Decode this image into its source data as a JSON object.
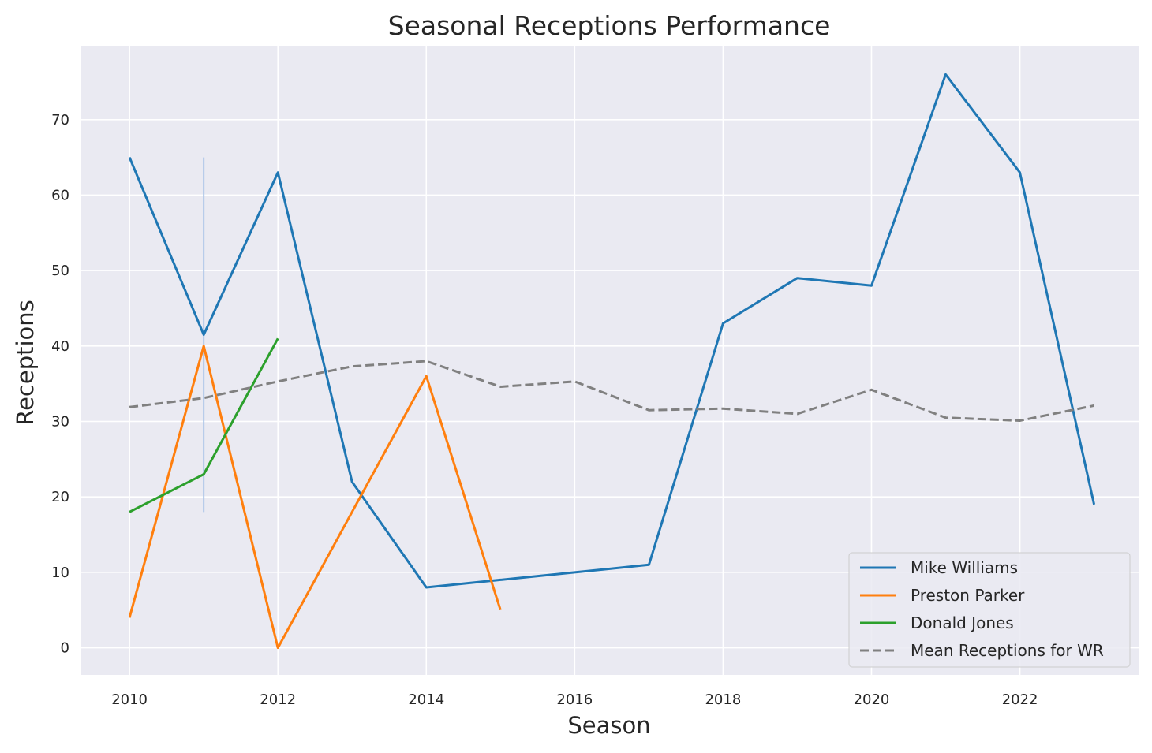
{
  "chart_data": {
    "type": "line",
    "title": "Seasonal Receptions Performance",
    "xlabel": "Season",
    "ylabel": "Receptions",
    "xlim": [
      2009.35,
      2023.6
    ],
    "ylim": [
      -3.6,
      79.8
    ],
    "xticks": [
      2010,
      2012,
      2014,
      2016,
      2018,
      2020,
      2022
    ],
    "yticks": [
      0,
      10,
      20,
      30,
      40,
      50,
      60,
      70
    ],
    "grid": true,
    "legend_position": "lower-right",
    "background": "#eaeaf2",
    "series": [
      {
        "name": "Mike Williams",
        "color": "#1f77b4",
        "dashed": false,
        "x": [
          2010,
          2011,
          2012,
          2013,
          2014,
          2015,
          2016,
          2017,
          2018,
          2019,
          2020,
          2021,
          2022,
          2023
        ],
        "y": [
          65,
          41.5,
          63,
          22,
          8,
          9,
          10,
          11,
          43,
          49,
          48,
          76,
          63,
          19
        ]
      },
      {
        "name": "Preston Parker",
        "color": "#ff7f0e",
        "dashed": false,
        "x": [
          2010,
          2011,
          2012,
          2013,
          2014,
          2015
        ],
        "y": [
          4,
          40,
          0,
          18,
          36,
          5
        ]
      },
      {
        "name": "Donald Jones",
        "color": "#2ca02c",
        "dashed": false,
        "x": [
          2010,
          2011,
          2012
        ],
        "y": [
          18,
          23,
          41
        ]
      },
      {
        "name": "Mean Receptions for WR",
        "color": "#808080",
        "dashed": true,
        "x": [
          2010,
          2011,
          2012,
          2013,
          2014,
          2015,
          2016,
          2017,
          2018,
          2019,
          2020,
          2021,
          2022,
          2023
        ],
        "y": [
          31.9,
          33.1,
          35.3,
          37.3,
          38.0,
          34.6,
          35.3,
          31.5,
          31.7,
          31.0,
          34.2,
          30.5,
          30.1,
          32.1
        ]
      }
    ],
    "error_bars": [
      {
        "series": "Mike Williams",
        "x": 2011,
        "low": 18,
        "high": 65,
        "color": "#aec7e8"
      }
    ]
  }
}
